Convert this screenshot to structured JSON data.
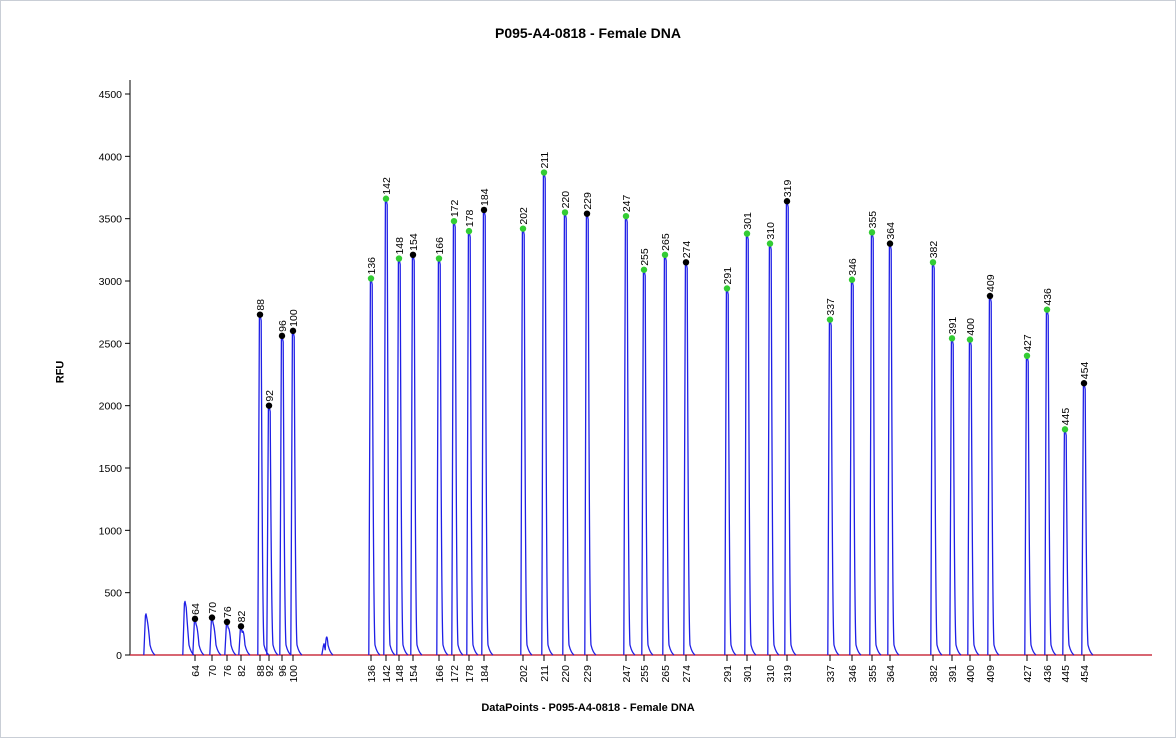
{
  "chart_data": {
    "type": "line",
    "title": "P095-A4-0818 - Female DNA",
    "xlabel": "DataPoints - P095-A4-0818 - Female DNA",
    "ylabel": "RFU",
    "ylim": [
      0,
      4600
    ],
    "yticks": [
      0,
      500,
      1000,
      1500,
      2000,
      2500,
      3000,
      3500,
      4000,
      4500
    ],
    "grid": false,
    "colors": {
      "trace": "#1f1fe6",
      "baseline": "#cc3344",
      "marker_green": "#33cc33",
      "marker_black": "#000000"
    },
    "extra_peaks": [
      {
        "pos": 54,
        "height": 330
      },
      {
        "pos": 60,
        "height": 430
      },
      {
        "pos": 104,
        "height": 90
      }
    ],
    "peaks": [
      {
        "label": "64",
        "height": 290,
        "marker": "black"
      },
      {
        "label": "70",
        "height": 300,
        "marker": "black"
      },
      {
        "label": "76",
        "height": 265,
        "marker": "black"
      },
      {
        "label": "82",
        "height": 230,
        "marker": "black"
      },
      {
        "label": "88",
        "height": 2730,
        "marker": "black"
      },
      {
        "label": "92",
        "height": 2000,
        "marker": "black"
      },
      {
        "label": "96",
        "height": 2560,
        "marker": "black"
      },
      {
        "label": "100",
        "height": 2600,
        "marker": "black"
      },
      {
        "label": "136",
        "height": 3020,
        "marker": "green"
      },
      {
        "label": "142",
        "height": 3660,
        "marker": "green"
      },
      {
        "label": "148",
        "height": 3180,
        "marker": "green"
      },
      {
        "label": "154",
        "height": 3210,
        "marker": "black"
      },
      {
        "label": "166",
        "height": 3180,
        "marker": "green"
      },
      {
        "label": "172",
        "height": 3480,
        "marker": "green"
      },
      {
        "label": "178",
        "height": 3400,
        "marker": "green"
      },
      {
        "label": "184",
        "height": 3570,
        "marker": "black"
      },
      {
        "label": "202",
        "height": 3420,
        "marker": "green"
      },
      {
        "label": "211",
        "height": 3870,
        "marker": "green"
      },
      {
        "label": "220",
        "height": 3550,
        "marker": "green"
      },
      {
        "label": "229",
        "height": 3540,
        "marker": "black"
      },
      {
        "label": "247",
        "height": 3520,
        "marker": "green"
      },
      {
        "label": "255",
        "height": 3090,
        "marker": "green"
      },
      {
        "label": "265",
        "height": 3210,
        "marker": "green"
      },
      {
        "label": "274",
        "height": 3150,
        "marker": "black"
      },
      {
        "label": "291",
        "height": 2940,
        "marker": "green"
      },
      {
        "label": "301",
        "height": 3380,
        "marker": "green"
      },
      {
        "label": "310",
        "height": 3300,
        "marker": "green"
      },
      {
        "label": "319",
        "height": 3640,
        "marker": "black"
      },
      {
        "label": "337",
        "height": 2690,
        "marker": "green"
      },
      {
        "label": "346",
        "height": 3010,
        "marker": "green"
      },
      {
        "label": "355",
        "height": 3390,
        "marker": "green"
      },
      {
        "label": "364",
        "height": 3300,
        "marker": "black"
      },
      {
        "label": "382",
        "height": 3150,
        "marker": "green"
      },
      {
        "label": "391",
        "height": 2540,
        "marker": "green"
      },
      {
        "label": "400",
        "height": 2530,
        "marker": "green"
      },
      {
        "label": "409",
        "height": 2880,
        "marker": "black"
      },
      {
        "label": "427",
        "height": 2400,
        "marker": "green"
      },
      {
        "label": "436",
        "height": 2770,
        "marker": "green"
      },
      {
        "label": "445",
        "height": 1810,
        "marker": "green"
      },
      {
        "label": "454",
        "height": 2180,
        "marker": "black"
      }
    ]
  }
}
